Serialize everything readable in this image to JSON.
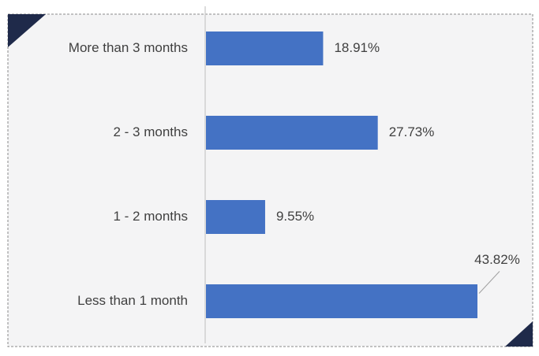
{
  "chart_data": {
    "type": "bar",
    "orientation": "horizontal",
    "categories": [
      "More than 3 months",
      "2 - 3 months",
      "1 - 2 months",
      "Less than 1 month"
    ],
    "values": [
      18.91,
      27.73,
      9.55,
      43.82
    ],
    "value_labels": [
      "18.91%",
      "27.73%",
      "9.55%",
      "43.82%"
    ],
    "color": "#4472c4"
  }
}
